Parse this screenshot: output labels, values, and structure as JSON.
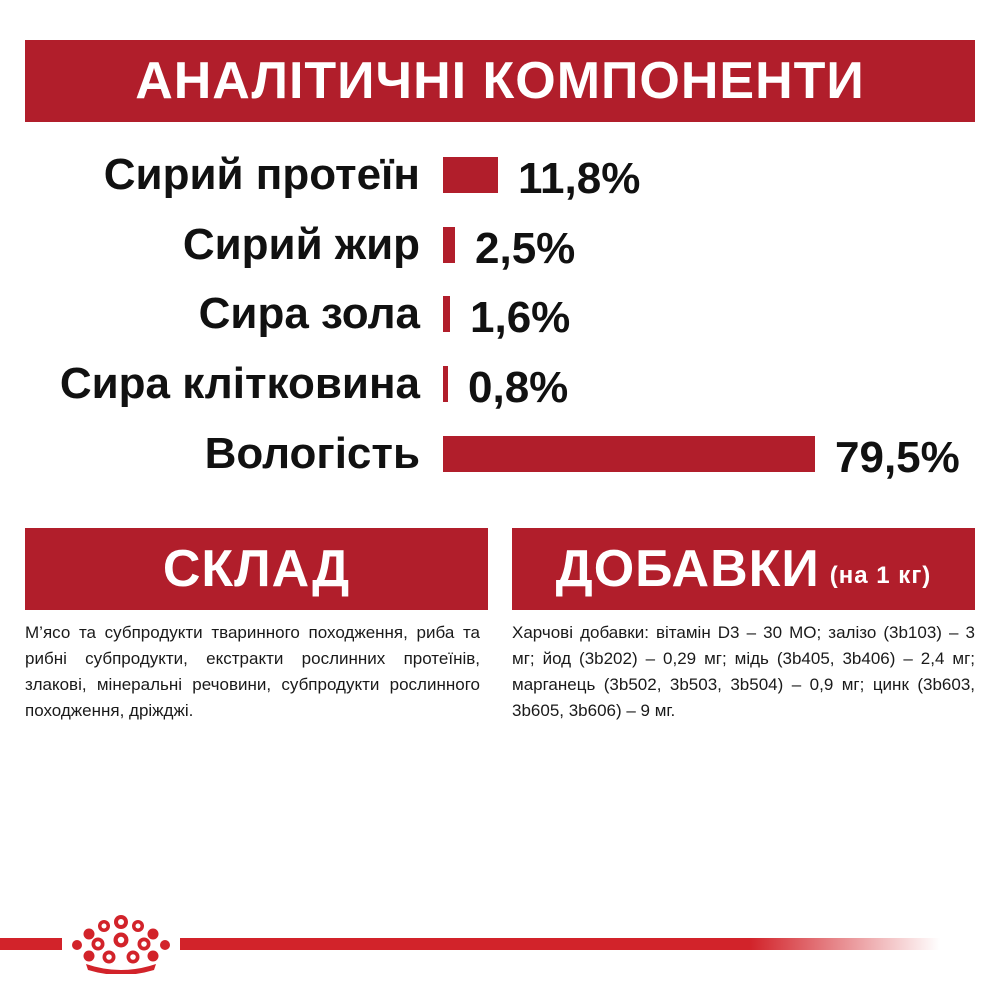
{
  "analytic": {
    "title": "АНАЛІТИЧНІ КОМПОНЕНТИ"
  },
  "chart_data": {
    "type": "bar",
    "orientation": "horizontal",
    "categories": [
      "Сирий протеїн",
      "Сирий жир",
      "Сира зола",
      "Сира клітковина",
      "Вологість"
    ],
    "values": [
      11.8,
      2.5,
      1.6,
      0.8,
      79.5
    ],
    "labels": [
      "11,8%",
      "2,5%",
      "1,6%",
      "0,8%",
      "79,5%"
    ],
    "xlim": [
      0,
      79.5
    ],
    "bar_color": "#b11e2b",
    "grid": false
  },
  "composition": {
    "title": "СКЛАД",
    "text": "М’ясо та субпродукти тваринного походження, риба та рибні субпродукти, екстракти рослинних протеїнів, злакові, мінеральні речовини, субпродукти рослинного походження, дріжджі."
  },
  "additives": {
    "title": "ДОБАВКИ",
    "subtitle": "(на 1 кг)",
    "text": "Харчові добавки: вітамін D3 – 30 МО; залізо (3b103) – 3 мг; йод (3b202) – 0,29 мг; мідь (3b405, 3b406) – 2,4 мг; марганець (3b502, 3b503, 3b504) – 0,9 мг; цинк (3b603, 3b605, 3b606) – 9 мг."
  },
  "footer": {
    "logo_icon": "crown-logo-icon",
    "accent_color": "#d2232a"
  }
}
